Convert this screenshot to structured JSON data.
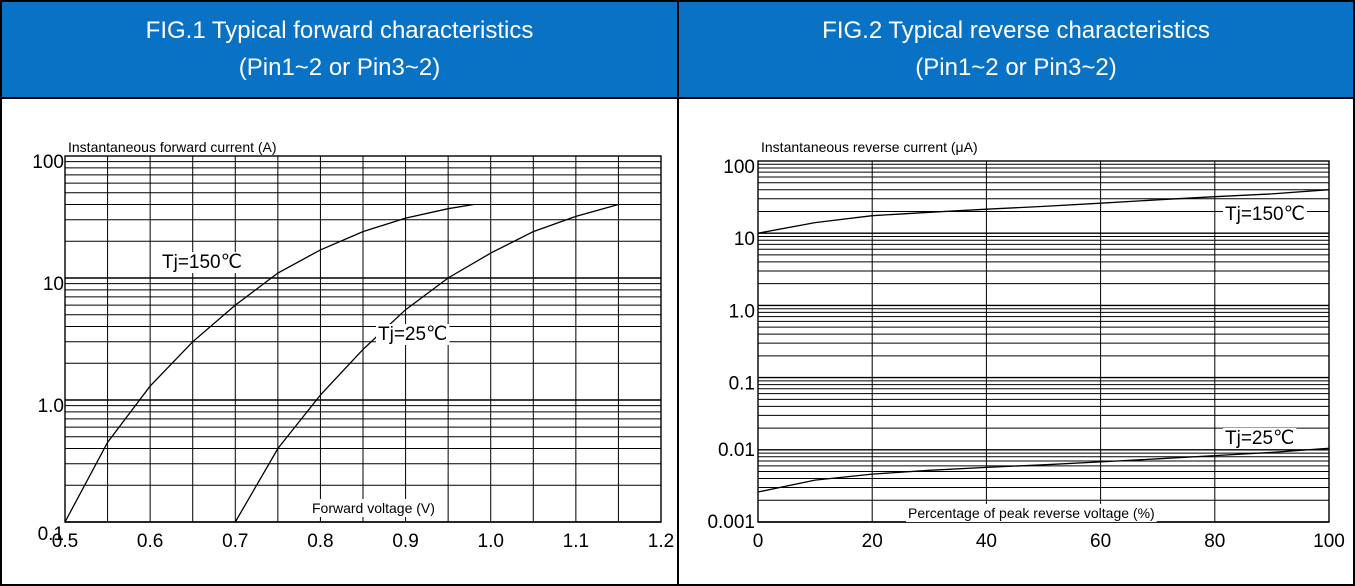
{
  "chart_data": [
    {
      "type": "line",
      "header": {
        "line1": "FIG.1 Typical forward characteristics",
        "line2": "(Pin1~2 or Pin3~2)"
      },
      "ylabel": "Instantaneous forward current (A)",
      "xlabel": "Forward voltage (V)",
      "x_scale": "linear",
      "y_scale": "log",
      "xlim": [
        0.5,
        1.2
      ],
      "ylim": [
        0.1,
        100
      ],
      "x_ticks": [
        "0.5",
        "0.6",
        "0.7",
        "0.8",
        "0.9",
        "1.0",
        "1.1",
        "1.2"
      ],
      "y_ticks": [
        "0.1",
        "1.0",
        "10",
        "100"
      ],
      "grid": true,
      "series": [
        {
          "name": "Tj=150℃",
          "x": [
            0.5,
            0.55,
            0.6,
            0.65,
            0.7,
            0.75,
            0.8,
            0.85,
            0.9,
            0.95,
            0.98
          ],
          "y": [
            0.1,
            0.45,
            1.3,
            3.0,
            6.0,
            11,
            17,
            24,
            31,
            37,
            40
          ]
        },
        {
          "name": "Tj=25℃",
          "x": [
            0.7,
            0.75,
            0.8,
            0.85,
            0.9,
            0.95,
            1.0,
            1.05,
            1.1,
            1.15
          ],
          "y": [
            0.1,
            0.4,
            1.1,
            2.6,
            5.5,
            10,
            16,
            24,
            32,
            40
          ]
        }
      ]
    },
    {
      "type": "line",
      "header": {
        "line1": "FIG.2 Typical reverse characteristics",
        "line2": "(Pin1~2 or Pin3~2)"
      },
      "ylabel": "Instantaneous reverse current (μA)",
      "xlabel": "Percentage of peak reverse voltage (%)",
      "x_scale": "linear",
      "y_scale": "log",
      "xlim": [
        0,
        100
      ],
      "ylim": [
        0.001,
        100
      ],
      "x_ticks": [
        "0",
        "20",
        "40",
        "60",
        "80",
        "100"
      ],
      "y_ticks": [
        "0.001",
        "0.01",
        "0.1",
        "1.0",
        "10",
        "100"
      ],
      "grid": true,
      "series": [
        {
          "name": "Tj=150℃",
          "x": [
            0,
            10,
            20,
            30,
            40,
            50,
            60,
            70,
            80,
            90,
            100
          ],
          "y": [
            10,
            14,
            17.5,
            19.5,
            21.5,
            23.5,
            26,
            29,
            32,
            35,
            40
          ]
        },
        {
          "name": "Tj=25℃",
          "x": [
            0,
            10,
            20,
            30,
            40,
            50,
            60,
            70,
            80,
            90,
            100
          ],
          "y": [
            0.0026,
            0.0038,
            0.0046,
            0.0052,
            0.0057,
            0.0062,
            0.0068,
            0.0075,
            0.0083,
            0.0092,
            0.0105
          ]
        }
      ]
    }
  ]
}
